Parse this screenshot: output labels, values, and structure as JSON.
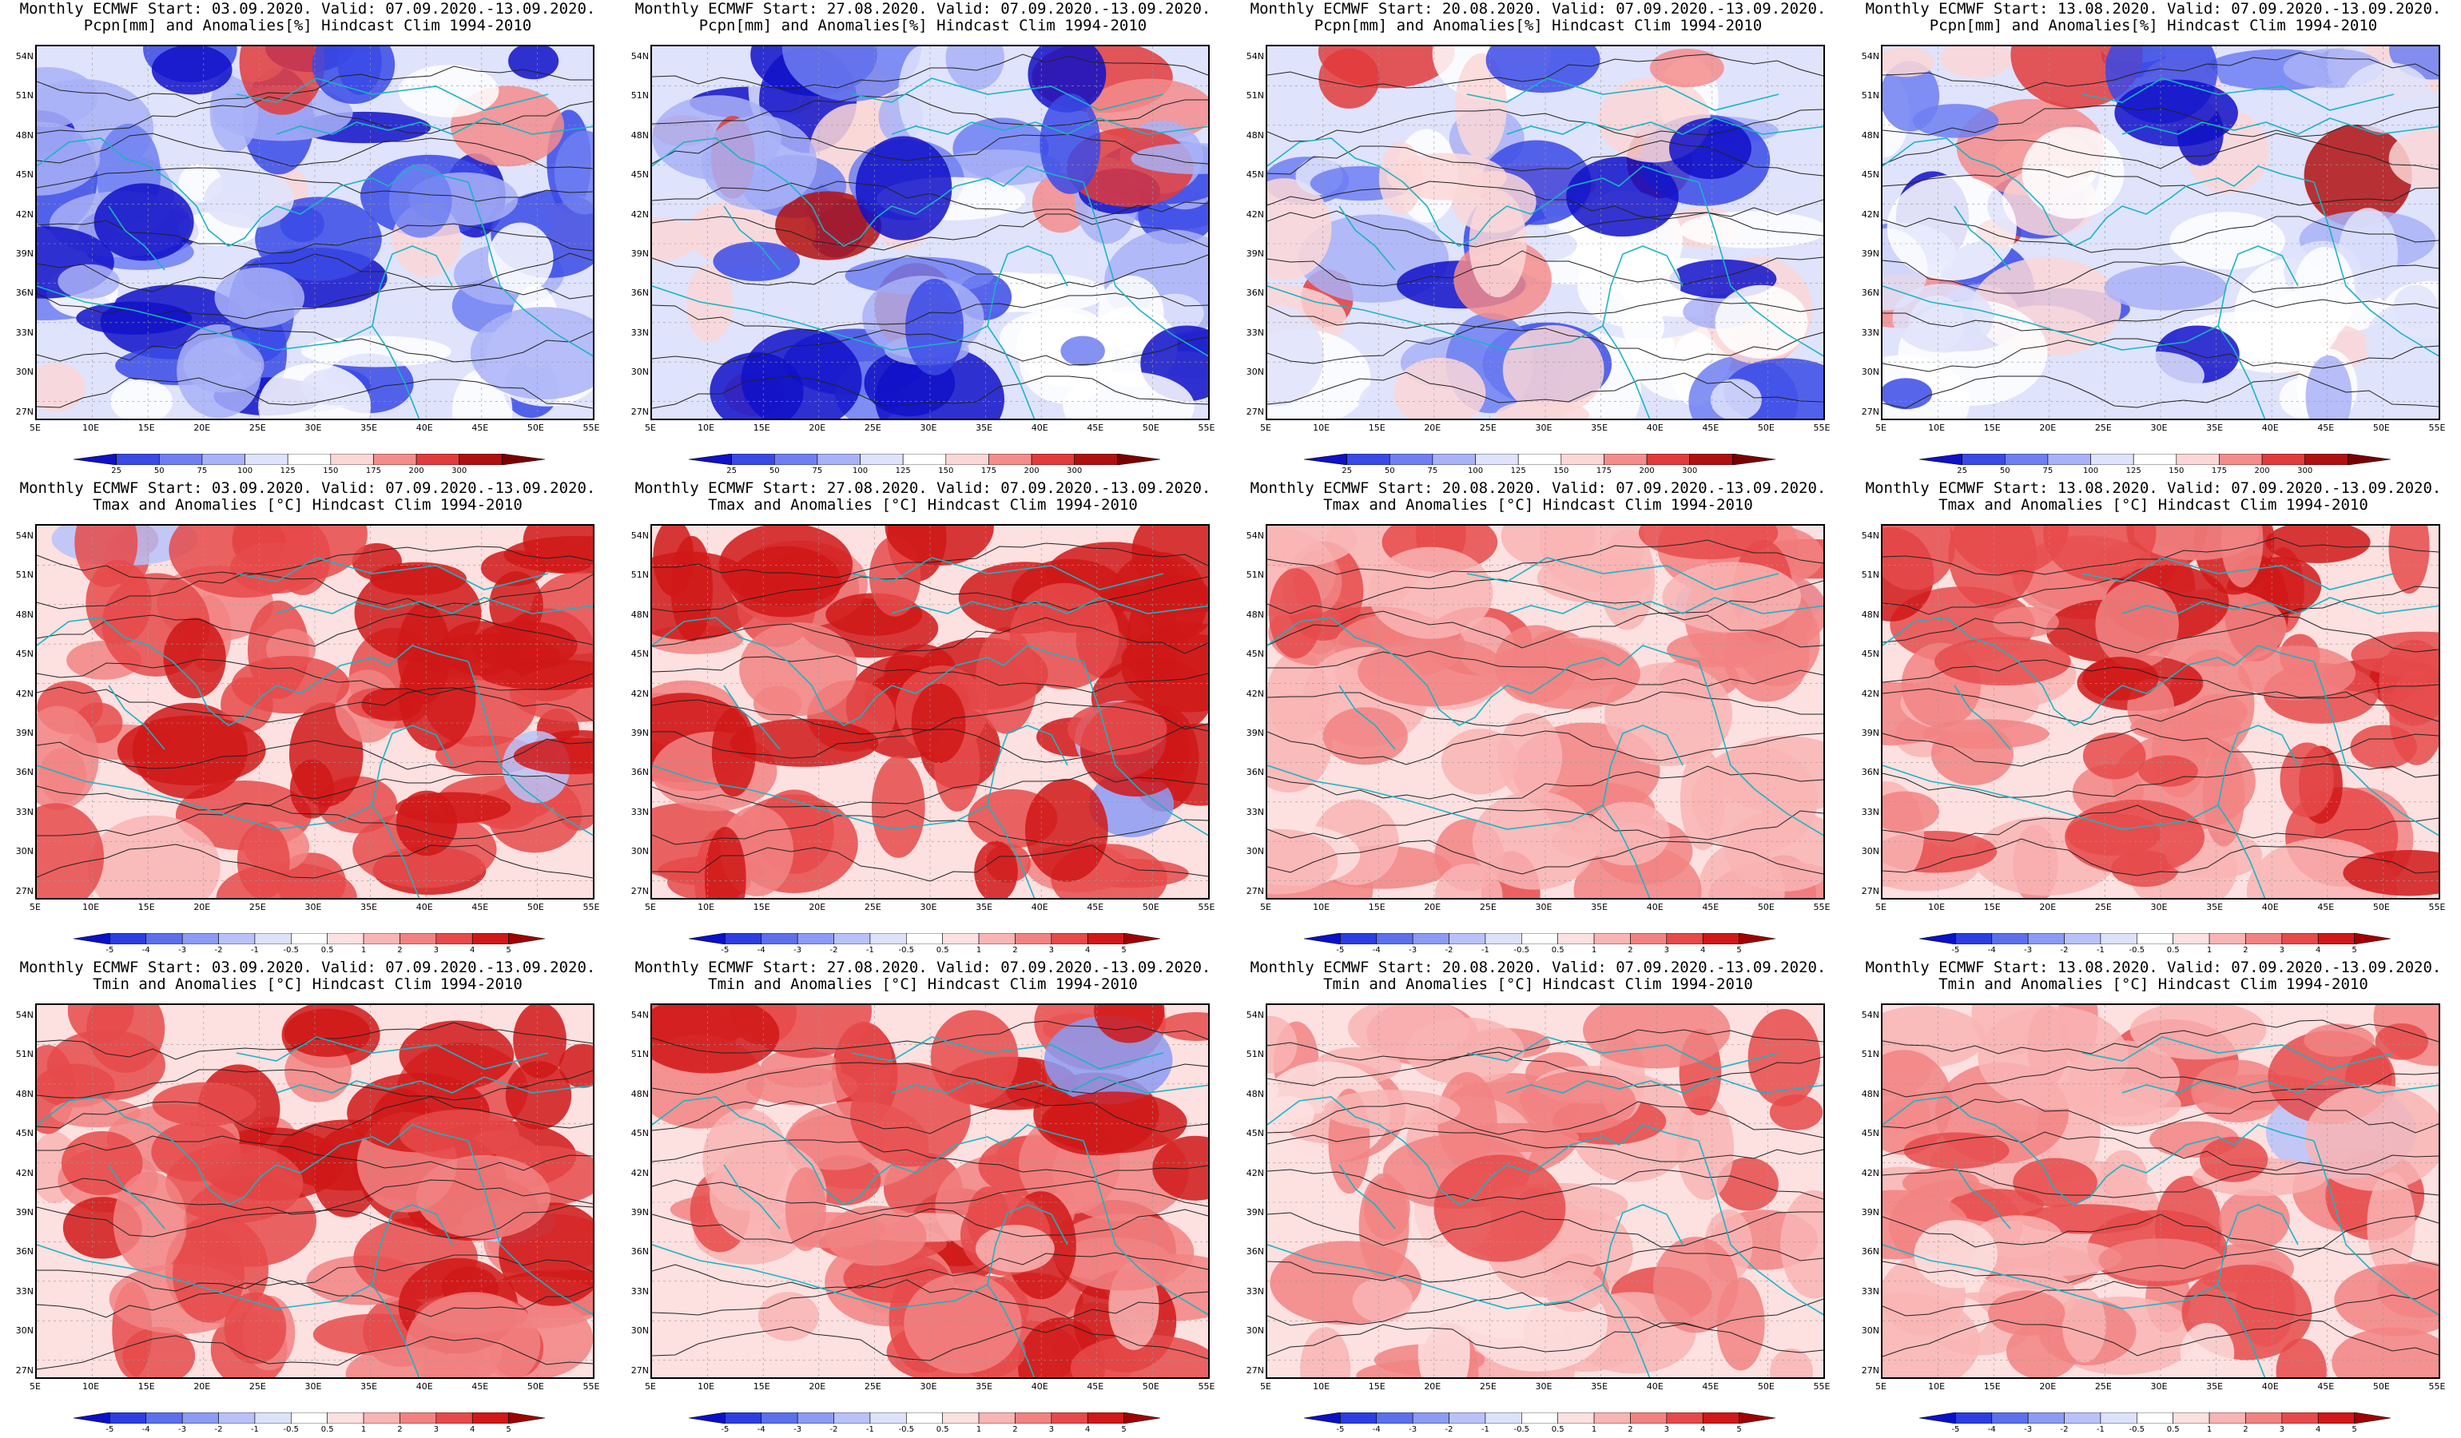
{
  "figure": {
    "rows": [
      {
        "variable": "Pcpn[mm] and Anomalies[%] Hindcast Clim 1994-2010",
        "kind": "precip",
        "colorbar_labels": [
          "25",
          "50",
          "75",
          "100",
          "125",
          "150",
          "175",
          "200",
          "300"
        ],
        "colors": [
          "#1010c8",
          "#3a4ae6",
          "#6f7ff2",
          "#a9b2f7",
          "#dfe3fb",
          "#ffffff",
          "#fbd7d7",
          "#f58c8c",
          "#e23b3b",
          "#b01010",
          "#7a0000"
        ]
      },
      {
        "variable": "Tmax and Anomalies [°C] Hindcast Clim 1994-2010",
        "kind": "temp",
        "colorbar_labels": [
          "-5",
          "-4",
          "-3",
          "-2",
          "-1",
          "-0.5",
          "0.5",
          "1",
          "2",
          "3",
          "4",
          "5"
        ],
        "colors": [
          "#0a10c8",
          "#2c3ee0",
          "#5d70ec",
          "#8c9bf3",
          "#b9c2f8",
          "#dde2fb",
          "#ffffff",
          "#fde0e0",
          "#f9b4b4",
          "#f28282",
          "#e64a4a",
          "#d01818",
          "#a00000"
        ]
      },
      {
        "variable": "Tmin and Anomalies [°C] Hindcast Clim 1994-2010",
        "kind": "temp",
        "colorbar_labels": [
          "-5",
          "-4",
          "-3",
          "-2",
          "-1",
          "-0.5",
          "0.5",
          "1",
          "2",
          "3",
          "4",
          "5"
        ],
        "colors": [
          "#0a10c8",
          "#2c3ee0",
          "#5d70ec",
          "#8c9bf3",
          "#b9c2f8",
          "#dde2fb",
          "#ffffff",
          "#fde0e0",
          "#f9b4b4",
          "#f28282",
          "#e64a4a",
          "#d01818",
          "#a00000"
        ]
      }
    ],
    "columns": [
      {
        "start": "03.09.2020"
      },
      {
        "start": "27.08.2020"
      },
      {
        "start": "20.08.2020"
      },
      {
        "start": "13.08.2020"
      }
    ],
    "valid": "07.09.2020.-13.09.2020.",
    "model": "Monthly ECMWF",
    "lat_labels": [
      "54N",
      "51N",
      "48N",
      "45N",
      "42N",
      "39N",
      "36N",
      "33N",
      "30N",
      "27N"
    ],
    "lon_labels": [
      "5E",
      "10E",
      "15E",
      "20E",
      "25E",
      "30E",
      "35E",
      "40E",
      "45E",
      "50E",
      "55E"
    ],
    "intensity": [
      [
        0.85,
        0.75,
        0.45,
        0.55
      ],
      [
        0.85,
        0.9,
        0.45,
        0.65
      ],
      [
        0.7,
        0.6,
        0.3,
        0.4
      ]
    ]
  }
}
